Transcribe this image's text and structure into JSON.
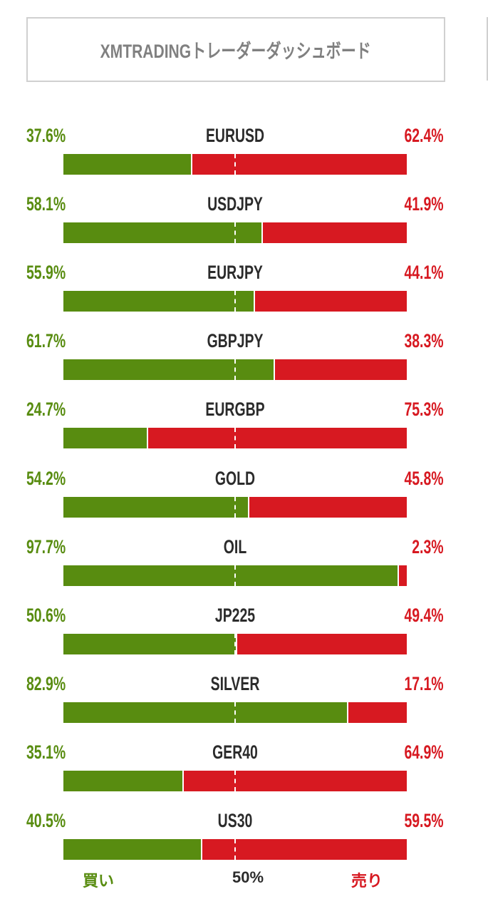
{
  "header": {
    "title": "XMTRADINGトレーダーダッシュボード"
  },
  "colors": {
    "buy": "#588c10",
    "sell": "#d71921"
  },
  "rows": [
    {
      "symbol": "EURUSD",
      "buy": "37.6%",
      "sell": "62.4%",
      "buy_value": 37.6
    },
    {
      "symbol": "USDJPY",
      "buy": "58.1%",
      "sell": "41.9%",
      "buy_value": 58.1
    },
    {
      "symbol": "EURJPY",
      "buy": "55.9%",
      "sell": "44.1%",
      "buy_value": 55.9
    },
    {
      "symbol": "GBPJPY",
      "buy": "61.7%",
      "sell": "38.3%",
      "buy_value": 61.7
    },
    {
      "symbol": "EURGBP",
      "buy": "24.7%",
      "sell": "75.3%",
      "buy_value": 24.7
    },
    {
      "symbol": "GOLD",
      "buy": "54.2%",
      "sell": "45.8%",
      "buy_value": 54.2
    },
    {
      "symbol": "OIL",
      "buy": "97.7%",
      "sell": "2.3%",
      "buy_value": 97.7
    },
    {
      "symbol": "JP225",
      "buy": "50.6%",
      "sell": "49.4%",
      "buy_value": 50.6
    },
    {
      "symbol": "SILVER",
      "buy": "82.9%",
      "sell": "17.1%",
      "buy_value": 82.9
    },
    {
      "symbol": "GER40",
      "buy": "35.1%",
      "sell": "64.9%",
      "buy_value": 35.1
    },
    {
      "symbol": "US30",
      "buy": "40.5%",
      "sell": "59.5%",
      "buy_value": 40.5
    }
  ],
  "legend": {
    "buy": "買い",
    "mid": "50%",
    "sell": "売り"
  }
}
